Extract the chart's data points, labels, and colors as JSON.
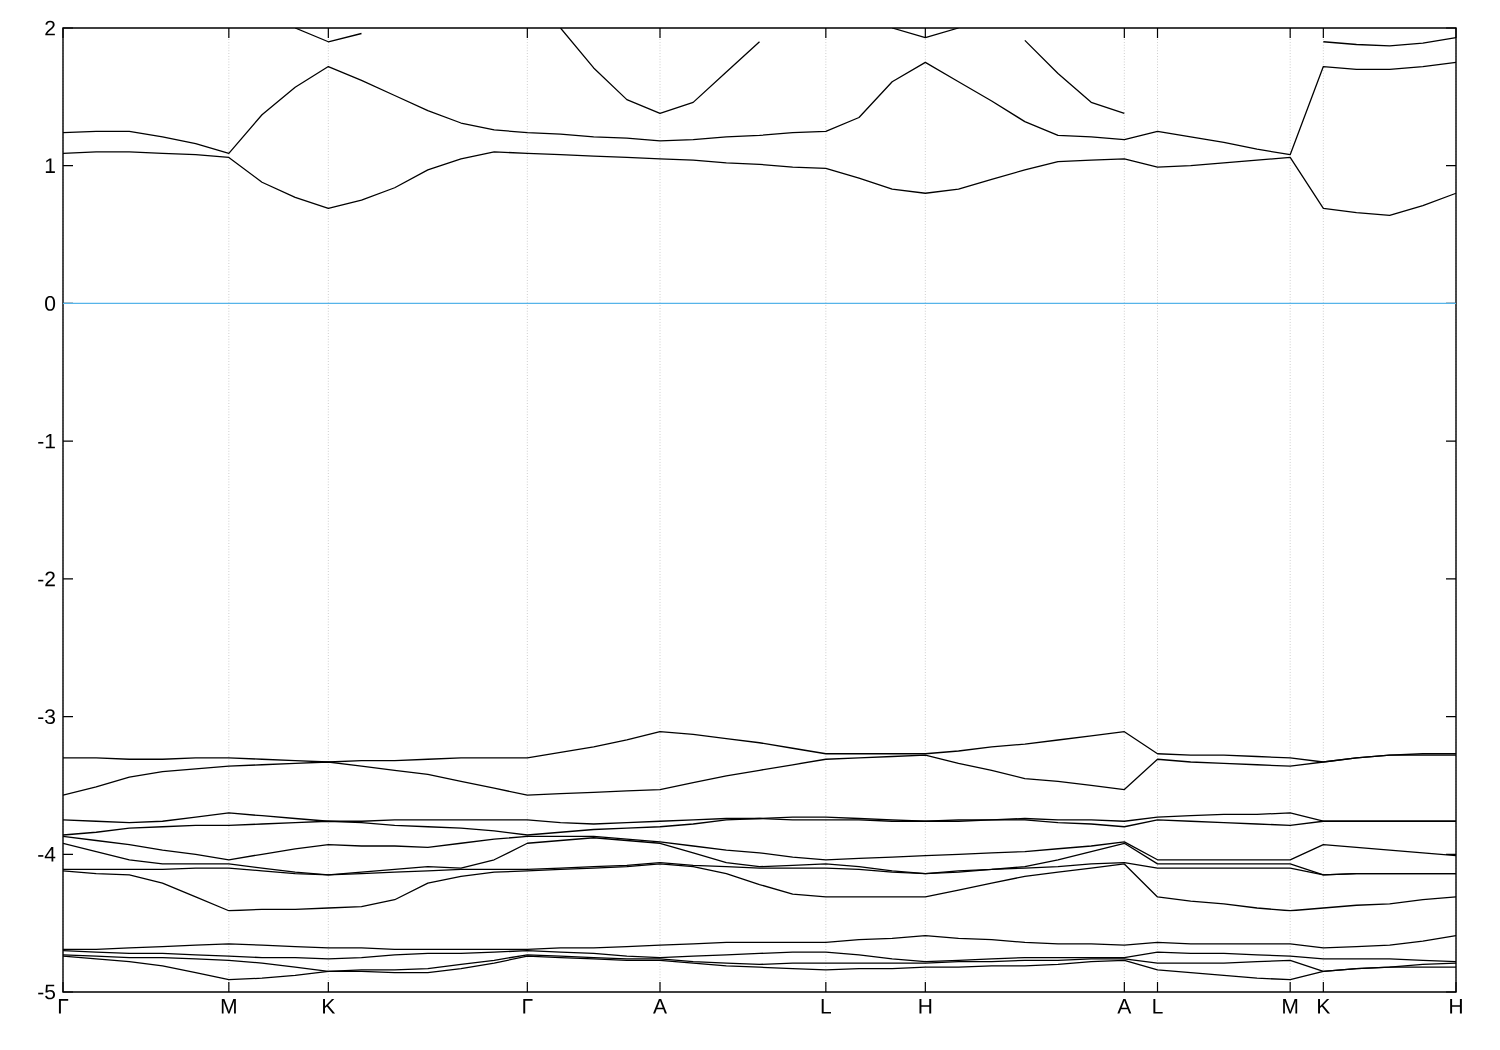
{
  "chart_data": {
    "type": "line",
    "ylim": [
      -5,
      2
    ],
    "categories": [
      "Γ",
      null,
      null,
      null,
      null,
      "M",
      null,
      null,
      "K",
      null,
      null,
      null,
      null,
      null,
      "Γ",
      null,
      null,
      null,
      "A",
      null,
      null,
      null,
      null,
      "L",
      null,
      null,
      "H",
      null,
      null,
      null,
      null,
      null,
      "A",
      "L",
      null,
      null,
      null,
      "M",
      "K",
      null,
      null,
      null,
      "H"
    ],
    "yticks": [
      -5,
      -4,
      -3,
      -2,
      -1,
      0,
      1,
      2
    ],
    "grid": "x",
    "marker": "none",
    "line_style": "solid",
    "ref_lines": [
      {
        "axis": "y",
        "value": 0,
        "color": "#56b4e9"
      }
    ],
    "series": [
      {
        "color": "#000000",
        "values": [
          1.09,
          1.1,
          1.1,
          1.09,
          1.08,
          1.06,
          0.88,
          0.77,
          0.69,
          0.75,
          0.84,
          0.97,
          1.05,
          1.1,
          1.09,
          1.08,
          1.07,
          1.06,
          1.05,
          1.04,
          1.02,
          1.01,
          0.99,
          0.98,
          0.91,
          0.83,
          0.8,
          0.83,
          0.9,
          0.97,
          1.03,
          1.04,
          1.05,
          0.99,
          1.0,
          1.02,
          1.04,
          1.06,
          0.69,
          0.66,
          0.64,
          0.71,
          0.8
        ]
      },
      {
        "color": "#000000",
        "values": [
          1.24,
          1.25,
          1.25,
          1.21,
          1.16,
          1.09,
          1.37,
          1.57,
          1.72,
          1.62,
          1.51,
          1.4,
          1.31,
          1.26,
          1.24,
          1.23,
          1.21,
          1.2,
          1.18,
          1.19,
          1.21,
          1.22,
          1.24,
          1.25,
          1.35,
          1.61,
          1.75,
          1.61,
          1.47,
          1.32,
          1.22,
          1.21,
          1.19,
          1.25,
          1.21,
          1.17,
          1.12,
          1.08,
          1.72,
          1.7,
          1.7,
          1.72,
          1.75
        ]
      },
      {
        "color": "#000000",
        "values": [
          null,
          null,
          null,
          null,
          null,
          null,
          null,
          2,
          1.9,
          1.96,
          null,
          null,
          null,
          null,
          null,
          2,
          1.71,
          1.48,
          1.38,
          1.46,
          1.68,
          1.9,
          null,
          null,
          null,
          2,
          1.93,
          2,
          null,
          1.91,
          1.67,
          1.46,
          1.38,
          null,
          null,
          null,
          null,
          null,
          1.9,
          1.88,
          1.87,
          1.89,
          1.93
        ]
      },
      {
        "color": "#000000",
        "values": [
          -3.3,
          -3.3,
          -3.31,
          -3.31,
          -3.3,
          -3.3,
          -3.31,
          -3.32,
          -3.33,
          -3.32,
          -3.32,
          -3.31,
          -3.3,
          -3.3,
          -3.3,
          -3.26,
          -3.22,
          -3.17,
          -3.11,
          -3.13,
          -3.16,
          -3.19,
          -3.23,
          -3.27,
          -3.27,
          -3.27,
          -3.27,
          -3.25,
          -3.22,
          -3.2,
          -3.17,
          -3.14,
          -3.11,
          -3.27,
          -3.28,
          -3.28,
          -3.29,
          -3.3,
          -3.33,
          -3.3,
          -3.28,
          -3.27,
          -3.27
        ]
      },
      {
        "color": "#000000",
        "values": [
          -3.57,
          -3.51,
          -3.44,
          -3.4,
          -3.38,
          -3.36,
          -3.35,
          -3.34,
          -3.33,
          -3.36,
          -3.39,
          -3.42,
          -3.47,
          -3.52,
          -3.57,
          -3.56,
          -3.55,
          -3.54,
          -3.53,
          -3.48,
          -3.43,
          -3.39,
          -3.35,
          -3.31,
          -3.3,
          -3.29,
          -3.28,
          -3.34,
          -3.39,
          -3.45,
          -3.47,
          -3.5,
          -3.53,
          -3.31,
          -3.33,
          -3.34,
          -3.35,
          -3.36,
          -3.33,
          -3.3,
          -3.28,
          -3.28,
          -3.28
        ]
      },
      {
        "color": "#000000",
        "values": [
          -3.75,
          -3.76,
          -3.77,
          -3.76,
          -3.73,
          -3.7,
          -3.72,
          -3.74,
          -3.76,
          -3.76,
          -3.75,
          -3.75,
          -3.75,
          -3.75,
          -3.75,
          -3.77,
          -3.78,
          -3.77,
          -3.76,
          -3.75,
          -3.74,
          -3.74,
          -3.73,
          -3.73,
          -3.74,
          -3.75,
          -3.76,
          -3.75,
          -3.75,
          -3.74,
          -3.75,
          -3.75,
          -3.76,
          -3.73,
          -3.72,
          -3.71,
          -3.71,
          -3.7,
          -3.76,
          -3.76,
          -3.76,
          -3.76,
          -3.76
        ]
      },
      {
        "color": "#000000",
        "values": [
          -3.86,
          -3.84,
          -3.81,
          -3.8,
          -3.79,
          -3.79,
          -3.78,
          -3.77,
          -3.76,
          -3.77,
          -3.79,
          -3.8,
          -3.81,
          -3.83,
          -3.86,
          -3.84,
          -3.82,
          -3.81,
          -3.8,
          -3.78,
          -3.75,
          -3.74,
          -3.75,
          -3.75,
          -3.75,
          -3.76,
          -3.76,
          -3.76,
          -3.75,
          -3.75,
          -3.77,
          -3.78,
          -3.8,
          -3.75,
          -3.76,
          -3.77,
          -3.78,
          -3.79,
          -3.76,
          -3.76,
          -3.76,
          -3.76,
          -3.76
        ]
      },
      {
        "color": "#000000",
        "values": [
          -3.87,
          -3.9,
          -3.93,
          -3.97,
          -4.0,
          -4.04,
          -4.0,
          -3.96,
          -3.93,
          -3.94,
          -3.94,
          -3.95,
          -3.92,
          -3.89,
          -3.87,
          -3.87,
          -3.87,
          -3.89,
          -3.91,
          -3.94,
          -3.97,
          -3.99,
          -4.02,
          -4.04,
          -4.03,
          -4.02,
          -4.01,
          -4.0,
          -3.99,
          -3.98,
          -3.96,
          -3.94,
          -3.91,
          -4.04,
          -4.04,
          -4.04,
          -4.04,
          -4.04,
          -3.93,
          -3.95,
          -3.97,
          -3.99,
          -4.01
        ]
      },
      {
        "color": "#000000",
        "values": [
          -3.92,
          -3.98,
          -4.04,
          -4.07,
          -4.07,
          -4.07,
          -4.1,
          -4.13,
          -4.15,
          -4.13,
          -4.11,
          -4.09,
          -4.1,
          -4.04,
          -3.92,
          -3.9,
          -3.88,
          -3.9,
          -3.92,
          -3.99,
          -4.06,
          -4.09,
          -4.08,
          -4.07,
          -4.09,
          -4.12,
          -4.14,
          -4.12,
          -4.11,
          -4.09,
          -4.04,
          -3.98,
          -3.92,
          -4.07,
          -4.07,
          -4.07,
          -4.07,
          -4.07,
          -4.15,
          -4.14,
          -4.14,
          -4.14,
          -4.14
        ]
      },
      {
        "color": "#000000",
        "values": [
          -4.11,
          -4.11,
          -4.11,
          -4.11,
          -4.1,
          -4.1,
          -4.12,
          -4.14,
          -4.15,
          -4.14,
          -4.13,
          -4.12,
          -4.11,
          -4.11,
          -4.11,
          -4.1,
          -4.09,
          -4.08,
          -4.06,
          -4.08,
          -4.09,
          -4.1,
          -4.1,
          -4.1,
          -4.11,
          -4.13,
          -4.14,
          -4.13,
          -4.11,
          -4.1,
          -4.09,
          -4.07,
          -4.06,
          -4.1,
          -4.1,
          -4.1,
          -4.1,
          -4.1,
          -4.15,
          -4.14,
          -4.14,
          -4.14,
          -4.14
        ]
      },
      {
        "color": "#000000",
        "values": [
          -4.12,
          -4.14,
          -4.15,
          -4.21,
          -4.31,
          -4.41,
          -4.4,
          -4.4,
          -4.39,
          -4.38,
          -4.33,
          -4.21,
          -4.16,
          -4.13,
          -4.12,
          -4.11,
          -4.1,
          -4.09,
          -4.07,
          -4.09,
          -4.14,
          -4.22,
          -4.29,
          -4.31,
          -4.31,
          -4.31,
          -4.31,
          -4.26,
          -4.21,
          -4.16,
          -4.13,
          -4.1,
          -4.07,
          -4.31,
          -4.34,
          -4.36,
          -4.39,
          -4.41,
          -4.39,
          -4.37,
          -4.36,
          -4.33,
          -4.31
        ]
      },
      {
        "color": "#000000",
        "values": [
          -4.69,
          -4.69,
          -4.68,
          -4.67,
          -4.66,
          -4.65,
          -4.66,
          -4.67,
          -4.68,
          -4.68,
          -4.69,
          -4.69,
          -4.69,
          -4.69,
          -4.69,
          -4.68,
          -4.68,
          -4.67,
          -4.66,
          -4.65,
          -4.64,
          -4.64,
          -4.64,
          -4.64,
          -4.62,
          -4.61,
          -4.59,
          -4.61,
          -4.62,
          -4.64,
          -4.65,
          -4.65,
          -4.66,
          -4.64,
          -4.65,
          -4.65,
          -4.65,
          -4.65,
          -4.68,
          -4.67,
          -4.66,
          -4.63,
          -4.59
        ]
      },
      {
        "color": "#000000",
        "values": [
          -4.7,
          -4.71,
          -4.72,
          -4.72,
          -4.73,
          -4.74,
          -4.75,
          -4.75,
          -4.76,
          -4.75,
          -4.73,
          -4.72,
          -4.72,
          -4.71,
          -4.7,
          -4.71,
          -4.72,
          -4.74,
          -4.75,
          -4.74,
          -4.73,
          -4.72,
          -4.71,
          -4.71,
          -4.73,
          -4.76,
          -4.78,
          -4.77,
          -4.76,
          -4.75,
          -4.75,
          -4.75,
          -4.75,
          -4.71,
          -4.72,
          -4.72,
          -4.73,
          -4.74,
          -4.76,
          -4.76,
          -4.76,
          -4.77,
          -4.78
        ]
      },
      {
        "color": "#000000",
        "values": [
          -4.73,
          -4.74,
          -4.75,
          -4.75,
          -4.76,
          -4.77,
          -4.79,
          -4.82,
          -4.85,
          -4.84,
          -4.84,
          -4.83,
          -4.8,
          -4.77,
          -4.73,
          -4.74,
          -4.75,
          -4.76,
          -4.76,
          -4.78,
          -4.79,
          -4.8,
          -4.79,
          -4.79,
          -4.79,
          -4.79,
          -4.79,
          -4.78,
          -4.78,
          -4.77,
          -4.77,
          -4.76,
          -4.76,
          -4.79,
          -4.79,
          -4.79,
          -4.78,
          -4.77,
          -4.85,
          -4.83,
          -4.82,
          -4.8,
          -4.79
        ]
      },
      {
        "color": "#000000",
        "values": [
          -4.74,
          -4.76,
          -4.78,
          -4.81,
          -4.86,
          -4.91,
          -4.9,
          -4.88,
          -4.85,
          -4.85,
          -4.86,
          -4.86,
          -4.83,
          -4.79,
          -4.74,
          -4.75,
          -4.76,
          -4.77,
          -4.77,
          -4.79,
          -4.81,
          -4.82,
          -4.83,
          -4.84,
          -4.83,
          -4.83,
          -4.82,
          -4.82,
          -4.81,
          -4.81,
          -4.8,
          -4.78,
          -4.77,
          -4.84,
          -4.86,
          -4.88,
          -4.9,
          -4.91,
          -4.85,
          -4.83,
          -4.82,
          -4.82,
          -4.82
        ]
      }
    ]
  }
}
